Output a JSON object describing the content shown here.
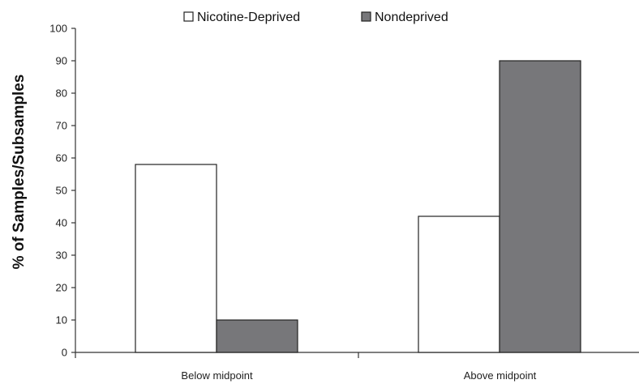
{
  "chart_data": {
    "type": "bar",
    "categories": [
      "Below midpoint",
      "Above midpoint"
    ],
    "series": [
      {
        "name": "Nicotine-Deprived",
        "values": [
          58,
          42
        ],
        "color": "#ffffff"
      },
      {
        "name": "Nondeprived",
        "values": [
          10,
          90
        ],
        "color": "#77777a"
      }
    ],
    "title": "",
    "xlabel": "",
    "ylabel": "% of Samples/Subsamples",
    "ylim": [
      0,
      100
    ],
    "yticks": [
      0,
      10,
      20,
      30,
      40,
      50,
      60,
      70,
      80,
      90,
      100
    ],
    "legend": {
      "placement": "top-center"
    },
    "grid": false
  }
}
